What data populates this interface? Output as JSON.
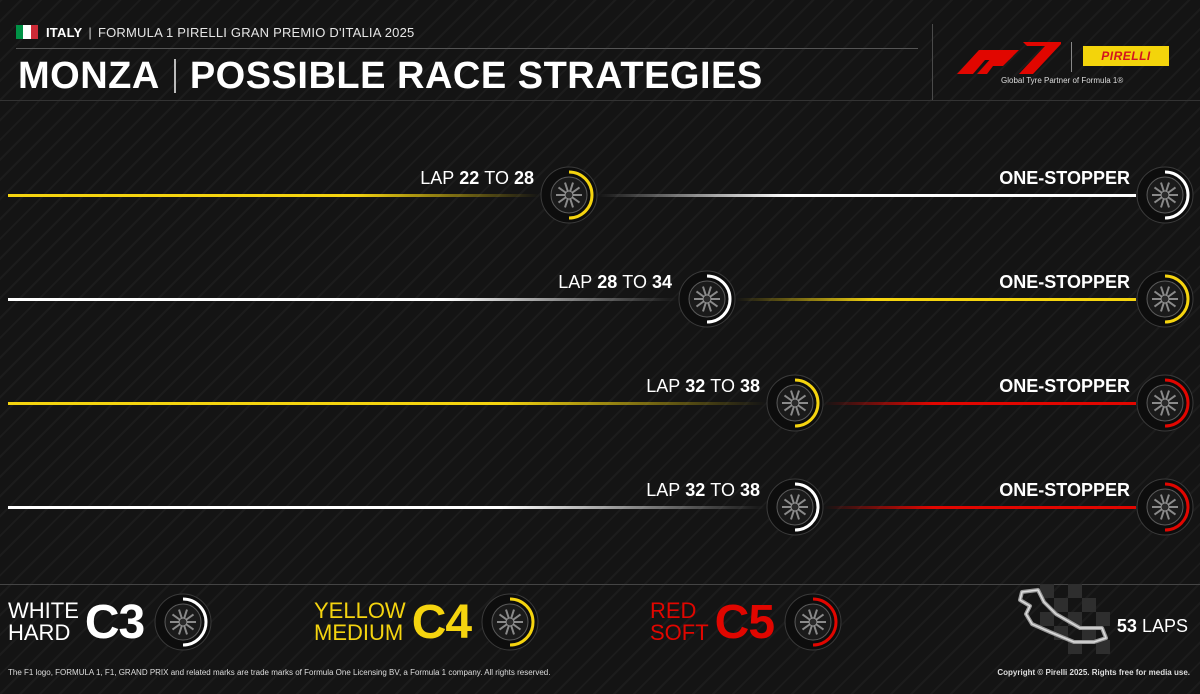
{
  "header": {
    "country": "ITALY",
    "event": "FORMULA 1 PIRELLI GRAN PREMIO D'ITALIA 2025",
    "title_circuit": "MONZA",
    "title_subject": "POSSIBLE RACE STRATEGIES",
    "partner_tagline": "Global Tyre Partner of Formula 1®",
    "pirelli_wordmark": "PIRELLI",
    "flag_colors": [
      "#009246",
      "#ffffff",
      "#ce2b37"
    ]
  },
  "compound_colors": {
    "hard": "#ffffff",
    "medium": "#f5d40f",
    "soft": "#e10600"
  },
  "strategies": [
    {
      "lap_word": "LAP",
      "lap_from": "22",
      "lap_to_word": "TO",
      "lap_to": "28",
      "type": "ONE-STOPPER",
      "first": "medium",
      "second": "hard"
    },
    {
      "lap_word": "LAP",
      "lap_from": "28",
      "lap_to_word": "TO",
      "lap_to": "34",
      "type": "ONE-STOPPER",
      "first": "hard",
      "second": "medium"
    },
    {
      "lap_word": "LAP",
      "lap_from": "32",
      "lap_to_word": "TO",
      "lap_to": "38",
      "type": "ONE-STOPPER",
      "first": "medium",
      "second": "soft"
    },
    {
      "lap_word": "LAP",
      "lap_from": "32",
      "lap_to_word": "TO",
      "lap_to": "38",
      "type": "ONE-STOPPER",
      "first": "hard",
      "second": "soft"
    }
  ],
  "legend": [
    {
      "color_name": "WHITE",
      "hardness": "HARD",
      "code": "C3",
      "compound": "hard"
    },
    {
      "color_name": "YELLOW",
      "hardness": "MEDIUM",
      "code": "C4",
      "compound": "medium"
    },
    {
      "color_name": "RED",
      "hardness": "SOFT",
      "code": "C5",
      "compound": "soft"
    }
  ],
  "race": {
    "laps_number": "53",
    "laps_word": "LAPS"
  },
  "footer": {
    "left": "The F1 logo, FORMULA 1, F1, GRAND PRIX and related marks are trade marks of Formula One Licensing BV, a Formula 1 company. All rights reserved.",
    "right": "Copyright © Pirelli 2025. Rights free for media use."
  }
}
